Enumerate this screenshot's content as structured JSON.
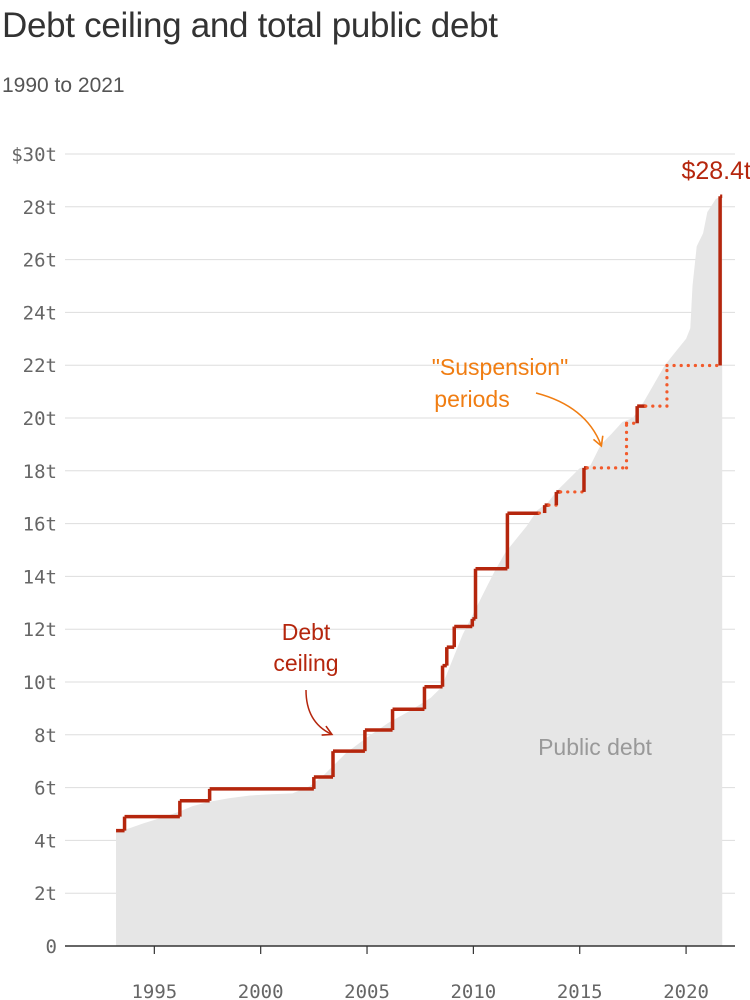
{
  "title": "Debt ceiling and total public debt",
  "subtitle": "1990 to 2021",
  "chart_data": {
    "type": "area",
    "title": "Debt ceiling and total public debt",
    "subtitle": "1990 to 2021",
    "xlim": [
      1990.8,
      2022.3
    ],
    "ylim": [
      0,
      30
    ],
    "grid": true,
    "x_ticks": [
      1995,
      2000,
      2005,
      2010,
      2015,
      2020
    ],
    "x_tick_labels": [
      "1995",
      "2000",
      "2005",
      "2010",
      "2015",
      "2020"
    ],
    "y_ticks": [
      0,
      2,
      4,
      6,
      8,
      10,
      12,
      14,
      16,
      18,
      20,
      22,
      24,
      26,
      28,
      30
    ],
    "y_tick_labels": [
      "0",
      "2t",
      "4t",
      "6t",
      "8t",
      "10t",
      "12t",
      "14t",
      "16t",
      "18t",
      "20t",
      "22t",
      "24t",
      "26t",
      "28t",
      "$30t"
    ],
    "colors": {
      "ceiling": "#b5260d",
      "suspension": "#f25a2b",
      "debt_area": "#e6e6e6",
      "suspension_label": "#f07d12",
      "grid": "#dddddd",
      "axis": "#333333"
    },
    "series": [
      {
        "name": "Public debt",
        "type": "area",
        "points": [
          [
            1993.2,
            4.35
          ],
          [
            1993.8,
            4.45
          ],
          [
            1994.5,
            4.65
          ],
          [
            1995.5,
            4.9
          ],
          [
            1996.2,
            5.1
          ],
          [
            1996.8,
            5.3
          ],
          [
            1997.5,
            5.45
          ],
          [
            1998.5,
            5.6
          ],
          [
            1999.5,
            5.7
          ],
          [
            2000.5,
            5.75
          ],
          [
            2001.5,
            5.78
          ],
          [
            2002.3,
            6.05
          ],
          [
            2003.0,
            6.5
          ],
          [
            2004.0,
            7.3
          ],
          [
            2005.0,
            7.9
          ],
          [
            2006.0,
            8.45
          ],
          [
            2007.0,
            8.9
          ],
          [
            2008.0,
            9.4
          ],
          [
            2008.5,
            9.8
          ],
          [
            2009.0,
            10.8
          ],
          [
            2009.5,
            11.8
          ],
          [
            2010.0,
            12.6
          ],
          [
            2010.5,
            13.4
          ],
          [
            2011.0,
            14.2
          ],
          [
            2011.5,
            14.9
          ],
          [
            2012.0,
            15.4
          ],
          [
            2012.5,
            15.9
          ],
          [
            2013.0,
            16.5
          ],
          [
            2013.5,
            16.8
          ],
          [
            2014.0,
            17.3
          ],
          [
            2014.5,
            17.7
          ],
          [
            2015.0,
            18.1
          ],
          [
            2015.5,
            18.2
          ],
          [
            2016.0,
            19.0
          ],
          [
            2016.5,
            19.4
          ],
          [
            2017.0,
            19.85
          ],
          [
            2017.5,
            20.0
          ],
          [
            2018.0,
            20.6
          ],
          [
            2018.5,
            21.3
          ],
          [
            2019.0,
            22.0
          ],
          [
            2019.5,
            22.5
          ],
          [
            2020.0,
            23.0
          ],
          [
            2020.2,
            23.4
          ],
          [
            2020.3,
            25.0
          ],
          [
            2020.5,
            26.5
          ],
          [
            2020.8,
            27.0
          ],
          [
            2021.0,
            27.8
          ],
          [
            2021.4,
            28.3
          ],
          [
            2021.7,
            28.4
          ]
        ]
      },
      {
        "name": "Debt ceiling",
        "type": "step",
        "segments": [
          {
            "x0": 1993.2,
            "x1": 1993.6,
            "y": 4.37,
            "suspension": false
          },
          {
            "x0": 1993.6,
            "x1": 1996.2,
            "y": 4.9,
            "suspension": false
          },
          {
            "x0": 1996.2,
            "x1": 1997.6,
            "y": 5.5,
            "suspension": false
          },
          {
            "x0": 1997.6,
            "x1": 2002.5,
            "y": 5.95,
            "suspension": false
          },
          {
            "x0": 2002.5,
            "x1": 2003.4,
            "y": 6.4,
            "suspension": false
          },
          {
            "x0": 2003.4,
            "x1": 2004.9,
            "y": 7.38,
            "suspension": false
          },
          {
            "x0": 2004.9,
            "x1": 2006.2,
            "y": 8.18,
            "suspension": false
          },
          {
            "x0": 2006.2,
            "x1": 2007.7,
            "y": 8.97,
            "suspension": false
          },
          {
            "x0": 2007.7,
            "x1": 2008.55,
            "y": 9.82,
            "suspension": false
          },
          {
            "x0": 2008.55,
            "x1": 2008.75,
            "y": 10.62,
            "suspension": false
          },
          {
            "x0": 2008.75,
            "x1": 2009.1,
            "y": 11.32,
            "suspension": false
          },
          {
            "x0": 2009.1,
            "x1": 2009.95,
            "y": 12.1,
            "suspension": false
          },
          {
            "x0": 2009.95,
            "x1": 2010.1,
            "y": 12.39,
            "suspension": false
          },
          {
            "x0": 2010.1,
            "x1": 2011.6,
            "y": 14.29,
            "suspension": false
          },
          {
            "x0": 2011.6,
            "x1": 2013.1,
            "y": 16.39,
            "suspension": false
          },
          {
            "x0": 2013.1,
            "x1": 2013.35,
            "y": 16.4,
            "suspension": true
          },
          {
            "x0": 2013.35,
            "x1": 2013.55,
            "y": 16.7,
            "suspension": false
          },
          {
            "x0": 2013.55,
            "x1": 2013.9,
            "y": 16.7,
            "suspension": true
          },
          {
            "x0": 2013.9,
            "x1": 2014.1,
            "y": 17.2,
            "suspension": false
          },
          {
            "x0": 2014.1,
            "x1": 2015.2,
            "y": 17.2,
            "suspension": true
          },
          {
            "x0": 2015.2,
            "x1": 2015.35,
            "y": 18.11,
            "suspension": false
          },
          {
            "x0": 2015.35,
            "x1": 2017.2,
            "y": 18.11,
            "suspension": true
          },
          {
            "x0": 2017.2,
            "x1": 2017.7,
            "y": 19.8,
            "suspension": true
          },
          {
            "x0": 2017.7,
            "x1": 2018.1,
            "y": 20.45,
            "suspension": false
          },
          {
            "x0": 2018.1,
            "x1": 2019.1,
            "y": 20.45,
            "suspension": true
          },
          {
            "x0": 2019.1,
            "x1": 2021.6,
            "y": 21.99,
            "suspension": true
          },
          {
            "x0": 2021.6,
            "x1": 2021.7,
            "y": 28.4,
            "suspension": false
          }
        ]
      }
    ],
    "annotations": {
      "end_value": {
        "text": "$28.4t",
        "x": 2021.7,
        "y": 28.4
      },
      "debt_ceiling": {
        "line1": "Debt",
        "line2": "ceiling"
      },
      "suspension": {
        "line1": "\"Suspension\"",
        "line2": "periods"
      },
      "public_debt": {
        "text": "Public debt"
      }
    }
  }
}
